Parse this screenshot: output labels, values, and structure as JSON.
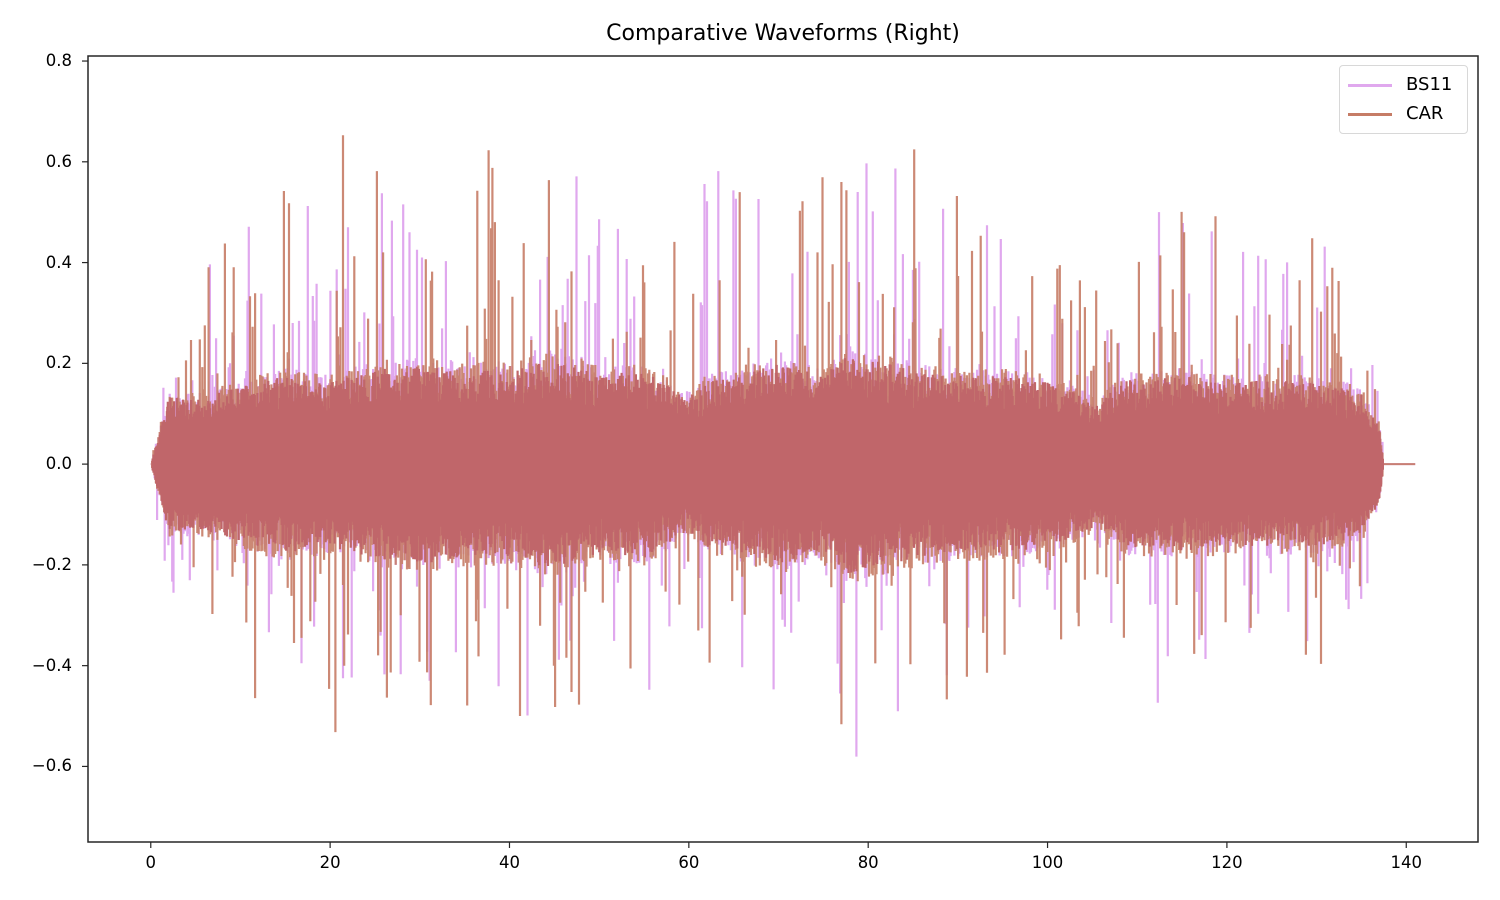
{
  "chart_data": {
    "type": "line",
    "title": "Comparative Waveforms (Right)",
    "xlabel": "",
    "ylabel": "",
    "xlim": [
      -7,
      148
    ],
    "ylim": [
      -0.75,
      0.81
    ],
    "xticks": [
      0,
      20,
      40,
      60,
      80,
      100,
      120,
      140
    ],
    "xtick_labels": [
      "0",
      "20",
      "40",
      "60",
      "80",
      "100",
      "120",
      "140"
    ],
    "yticks": [
      0.8,
      0.6,
      0.4,
      0.2,
      0.0,
      -0.2,
      -0.4,
      -0.6
    ],
    "ytick_labels": [
      "0.8",
      "0.6",
      "0.4",
      "0.2",
      "0.0",
      "−0.2",
      "−0.4",
      "−0.6"
    ],
    "grid": false,
    "legend_position": "upper right",
    "series": [
      {
        "name": "BS11",
        "color": "#e0a8ee",
        "alpha": 1.0,
        "x_range": [
          0,
          141
        ],
        "signal_end": 137.5,
        "peak_max": 0.73,
        "peak_min": -0.67,
        "envelope_x": [
          0,
          2,
          5,
          10,
          15,
          20,
          25,
          30,
          35,
          40,
          45,
          50,
          55,
          60,
          62,
          65,
          70,
          75,
          78,
          80,
          85,
          90,
          95,
          100,
          106,
          108,
          115,
          120,
          125,
          130,
          135,
          137,
          137.5
        ],
        "envelope_core": [
          0.0,
          0.12,
          0.12,
          0.14,
          0.16,
          0.15,
          0.17,
          0.18,
          0.17,
          0.17,
          0.19,
          0.16,
          0.17,
          0.12,
          0.15,
          0.16,
          0.18,
          0.16,
          0.2,
          0.19,
          0.17,
          0.16,
          0.16,
          0.15,
          0.11,
          0.15,
          0.16,
          0.15,
          0.15,
          0.15,
          0.13,
          0.07,
          0.0
        ],
        "envelope_peak": [
          0.0,
          0.37,
          0.33,
          0.64,
          0.58,
          0.57,
          0.55,
          0.52,
          0.64,
          0.68,
          0.6,
          0.55,
          0.55,
          0.42,
          0.7,
          0.6,
          0.55,
          0.6,
          0.66,
          0.73,
          0.6,
          0.55,
          0.5,
          0.45,
          0.3,
          0.46,
          0.62,
          0.43,
          0.42,
          0.45,
          0.35,
          0.2,
          0.0
        ]
      },
      {
        "name": "CAR",
        "color": "#c67c66",
        "alpha": 0.9,
        "x_range": [
          0,
          141
        ],
        "signal_end": 137.5,
        "peak_max": 0.73,
        "peak_min": -0.59,
        "envelope_x": [
          0,
          2,
          5,
          10,
          15,
          20,
          25,
          30,
          35,
          40,
          45,
          50,
          55,
          60,
          62,
          65,
          70,
          75,
          78,
          80,
          85,
          90,
          95,
          100,
          106,
          108,
          115,
          120,
          125,
          130,
          135,
          137,
          137.5
        ],
        "envelope_core": [
          0.0,
          0.12,
          0.12,
          0.14,
          0.16,
          0.15,
          0.17,
          0.18,
          0.17,
          0.17,
          0.19,
          0.16,
          0.17,
          0.12,
          0.15,
          0.16,
          0.18,
          0.16,
          0.2,
          0.19,
          0.17,
          0.16,
          0.16,
          0.15,
          0.11,
          0.15,
          0.16,
          0.15,
          0.15,
          0.15,
          0.13,
          0.07,
          0.0
        ],
        "envelope_peak": [
          0.0,
          0.3,
          0.35,
          0.64,
          0.55,
          0.73,
          0.6,
          0.55,
          0.66,
          0.6,
          0.64,
          0.58,
          0.55,
          0.45,
          0.6,
          0.55,
          0.58,
          0.62,
          0.7,
          0.68,
          0.65,
          0.55,
          0.48,
          0.42,
          0.38,
          0.42,
          0.55,
          0.48,
          0.45,
          0.52,
          0.4,
          0.2,
          0.0
        ]
      }
    ],
    "overlap_color": "#c0666a"
  },
  "legend": {
    "items": [
      {
        "label": "BS11",
        "color": "#e0a8ee"
      },
      {
        "label": "CAR",
        "color": "#c67c66"
      }
    ]
  }
}
